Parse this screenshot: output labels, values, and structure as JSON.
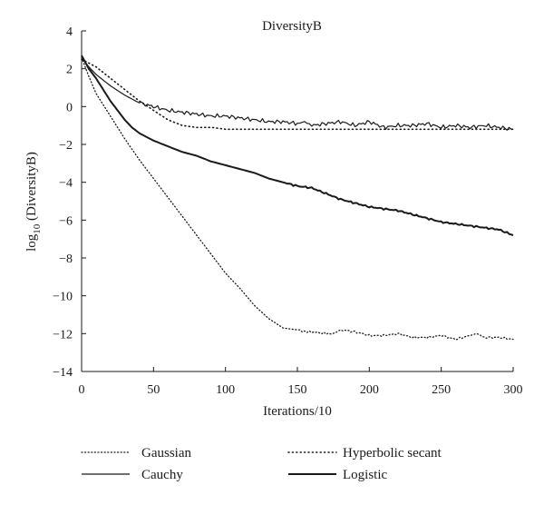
{
  "chart_data": {
    "type": "line",
    "title": "DiversityB",
    "xlabel": "Iterations/10",
    "ylabel_base": "log",
    "ylabel_sub": "10",
    "ylabel_rest": " (DiversityB)",
    "xlim": [
      0,
      300
    ],
    "ylim": [
      -14,
      4
    ],
    "xticks": [
      0,
      50,
      100,
      150,
      200,
      250,
      300
    ],
    "yticks": [
      4,
      2,
      0,
      -2,
      -4,
      -6,
      -8,
      -10,
      -12,
      -14
    ],
    "grid": false,
    "legend_position": "bottom",
    "series": [
      {
        "name": "Gaussian",
        "style": "dotted-fine",
        "x": [
          0,
          5,
          10,
          20,
          30,
          40,
          50,
          60,
          70,
          80,
          90,
          100,
          110,
          120,
          130,
          140,
          150,
          155,
          160,
          170,
          175,
          180,
          190,
          200,
          210,
          220,
          230,
          240,
          250,
          260,
          270,
          275,
          280,
          290,
          300
        ],
        "y": [
          2.6,
          1.6,
          0.7,
          -0.5,
          -1.7,
          -2.8,
          -3.8,
          -4.8,
          -5.8,
          -6.8,
          -7.8,
          -8.8,
          -9.6,
          -10.5,
          -11.2,
          -11.7,
          -11.8,
          -11.9,
          -11.9,
          -12.0,
          -12.0,
          -11.8,
          -11.9,
          -12.1,
          -12.1,
          -12.0,
          -12.2,
          -12.2,
          -12.1,
          -12.3,
          -12.1,
          -12.0,
          -12.2,
          -12.2,
          -12.3
        ]
      },
      {
        "name": "Cauchy",
        "style": "solid-thin",
        "x": [
          0,
          5,
          10,
          20,
          30,
          40,
          50,
          60,
          70,
          80,
          90,
          100,
          110,
          120,
          130,
          140,
          150,
          155,
          160,
          170,
          180,
          190,
          200,
          210,
          220,
          230,
          240,
          250,
          260,
          270,
          280,
          290,
          300
        ],
        "y": [
          2.6,
          2.1,
          1.7,
          1.1,
          0.6,
          0.2,
          0.0,
          -0.2,
          -0.3,
          -0.4,
          -0.5,
          -0.5,
          -0.6,
          -0.7,
          -0.8,
          -0.8,
          -0.9,
          -0.8,
          -1.0,
          -0.9,
          -0.8,
          -1.0,
          -0.8,
          -1.1,
          -1.0,
          -1.0,
          -0.9,
          -1.1,
          -1.0,
          -1.1,
          -1.0,
          -1.1,
          -1.2
        ]
      },
      {
        "name": "Hyperbolic secant",
        "style": "dotted-coarse",
        "x": [
          0,
          10,
          20,
          30,
          40,
          50,
          60,
          70,
          80,
          90,
          100,
          120,
          140,
          160,
          180,
          200,
          220,
          240,
          260,
          280,
          300
        ],
        "y": [
          2.5,
          2.1,
          1.5,
          0.9,
          0.3,
          -0.2,
          -0.7,
          -1.0,
          -1.1,
          -1.1,
          -1.2,
          -1.2,
          -1.2,
          -1.2,
          -1.2,
          -1.2,
          -1.2,
          -1.2,
          -1.2,
          -1.2,
          -1.2
        ]
      },
      {
        "name": "Logistic",
        "style": "solid-thick",
        "x": [
          0,
          5,
          10,
          20,
          30,
          35,
          40,
          50,
          60,
          70,
          80,
          90,
          100,
          110,
          120,
          130,
          140,
          150,
          160,
          170,
          180,
          190,
          200,
          210,
          220,
          230,
          240,
          250,
          260,
          270,
          280,
          290,
          300
        ],
        "y": [
          2.7,
          2.0,
          1.5,
          0.3,
          -0.7,
          -1.1,
          -1.4,
          -1.8,
          -2.1,
          -2.4,
          -2.6,
          -2.9,
          -3.1,
          -3.3,
          -3.5,
          -3.8,
          -4.0,
          -4.2,
          -4.3,
          -4.6,
          -4.9,
          -5.1,
          -5.3,
          -5.4,
          -5.5,
          -5.7,
          -5.9,
          -6.1,
          -6.2,
          -6.3,
          -6.4,
          -6.5,
          -6.8
        ]
      }
    ]
  }
}
